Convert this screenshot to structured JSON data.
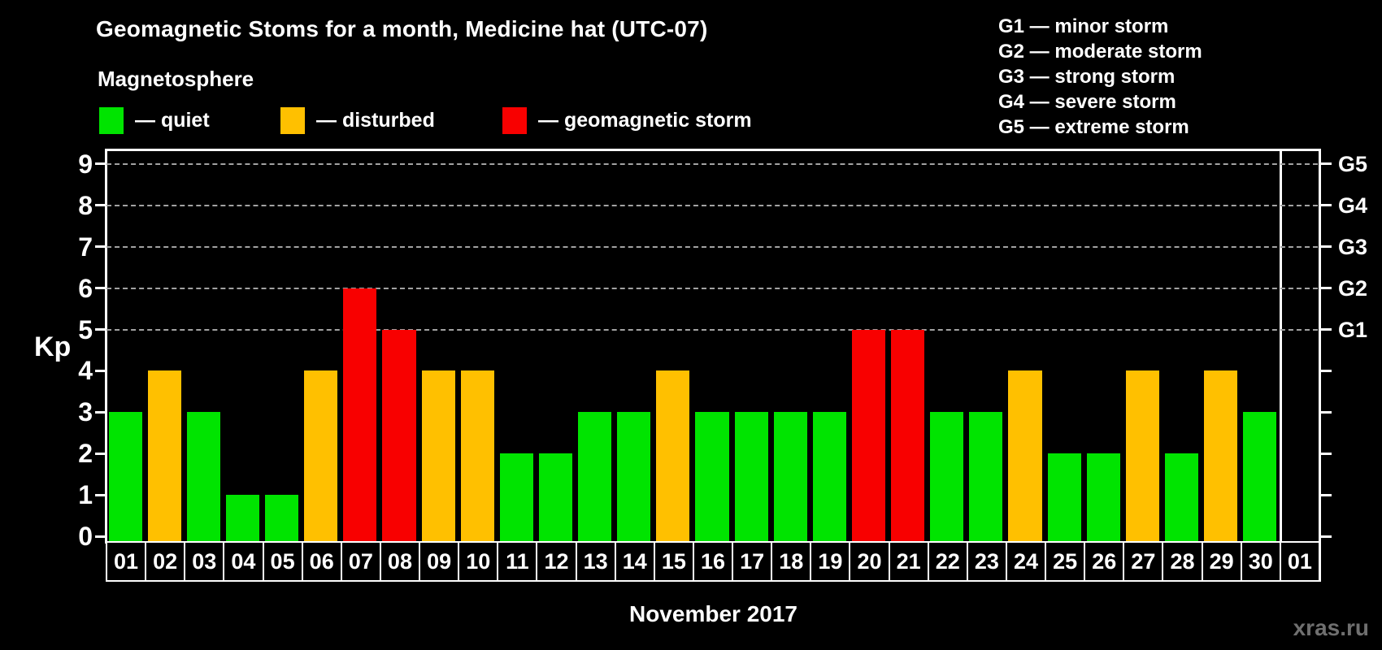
{
  "title": "Geomagnetic Stoms for a month, Medicine hat (UTC-07)",
  "legend": {
    "heading": "Magnetosphere",
    "items": [
      {
        "label": "— quiet",
        "color_key": "quiet"
      },
      {
        "label": "— disturbed",
        "color_key": "disturbed"
      },
      {
        "label": "— geomagnetic storm",
        "color_key": "storm"
      }
    ]
  },
  "g_scale_legend": [
    "G1 — minor storm",
    "G2 — moderate storm",
    "G3 — strong storm",
    "G4 — severe storm",
    "G5 — extreme storm"
  ],
  "colors": {
    "quiet": "#00e400",
    "disturbed": "#ffc000",
    "storm": "#f80000",
    "grid": "#a2a2a2",
    "frame": "#ffffff",
    "watermark_gray": "#6f6f6f"
  },
  "chart_data": {
    "type": "bar",
    "title": "Geomagnetic Stoms for a month, Medicine hat (UTC-07)",
    "xlabel": "November 2017",
    "ylabel": "Kp",
    "ylim": [
      0,
      9
    ],
    "y_ticks": [
      0,
      1,
      2,
      3,
      4,
      5,
      6,
      7,
      8,
      9
    ],
    "gridlines_at": [
      5,
      6,
      7,
      8,
      9
    ],
    "grid": "dashed, only at storm levels G1–G5",
    "legend_position": "top",
    "right_axis_labels": [
      {
        "kp": 5,
        "label": "G1"
      },
      {
        "kp": 6,
        "label": "G2"
      },
      {
        "kp": 7,
        "label": "G3"
      },
      {
        "kp": 8,
        "label": "G4"
      },
      {
        "kp": 9,
        "label": "G5"
      }
    ],
    "categories": [
      "01",
      "02",
      "03",
      "04",
      "05",
      "06",
      "07",
      "08",
      "09",
      "10",
      "11",
      "12",
      "13",
      "14",
      "15",
      "16",
      "17",
      "18",
      "19",
      "20",
      "21",
      "22",
      "23",
      "24",
      "25",
      "26",
      "27",
      "28",
      "29",
      "30",
      "01"
    ],
    "values": [
      3,
      4,
      3,
      1,
      1,
      4,
      6,
      5,
      4,
      4,
      2,
      2,
      3,
      3,
      4,
      3,
      3,
      3,
      3,
      5,
      5,
      3,
      3,
      4,
      2,
      2,
      4,
      2,
      4,
      3,
      null
    ],
    "statuses": [
      "quiet",
      "disturbed",
      "quiet",
      "quiet",
      "quiet",
      "disturbed",
      "storm",
      "storm",
      "disturbed",
      "disturbed",
      "quiet",
      "quiet",
      "quiet",
      "quiet",
      "disturbed",
      "quiet",
      "quiet",
      "quiet",
      "quiet",
      "storm",
      "storm",
      "quiet",
      "quiet",
      "disturbed",
      "quiet",
      "quiet",
      "disturbed",
      "quiet",
      "disturbed",
      "quiet",
      null
    ]
  },
  "footer": {
    "month_label": "November 2017",
    "watermark": "xras.ru"
  }
}
